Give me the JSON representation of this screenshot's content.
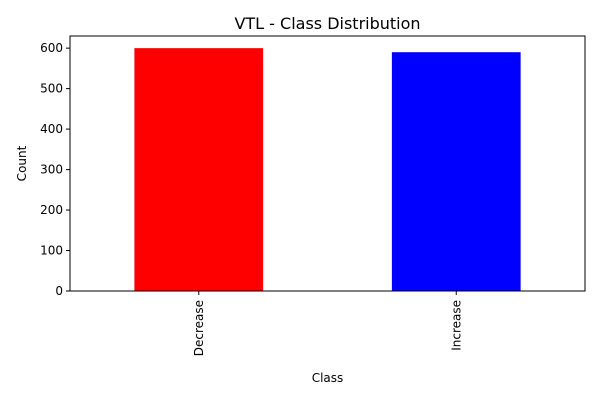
{
  "chart_data": {
    "type": "bar",
    "title": "VTL - Class Distribution",
    "xlabel": "Class",
    "ylabel": "Count",
    "categories": [
      "Decrease",
      "Increase"
    ],
    "values": [
      600,
      590
    ],
    "colors": [
      "#ff0000",
      "#0000ff"
    ],
    "ylim": [
      0,
      630
    ],
    "yticks": [
      0,
      100,
      200,
      300,
      400,
      500,
      600
    ],
    "grid": false,
    "legend": "none"
  }
}
